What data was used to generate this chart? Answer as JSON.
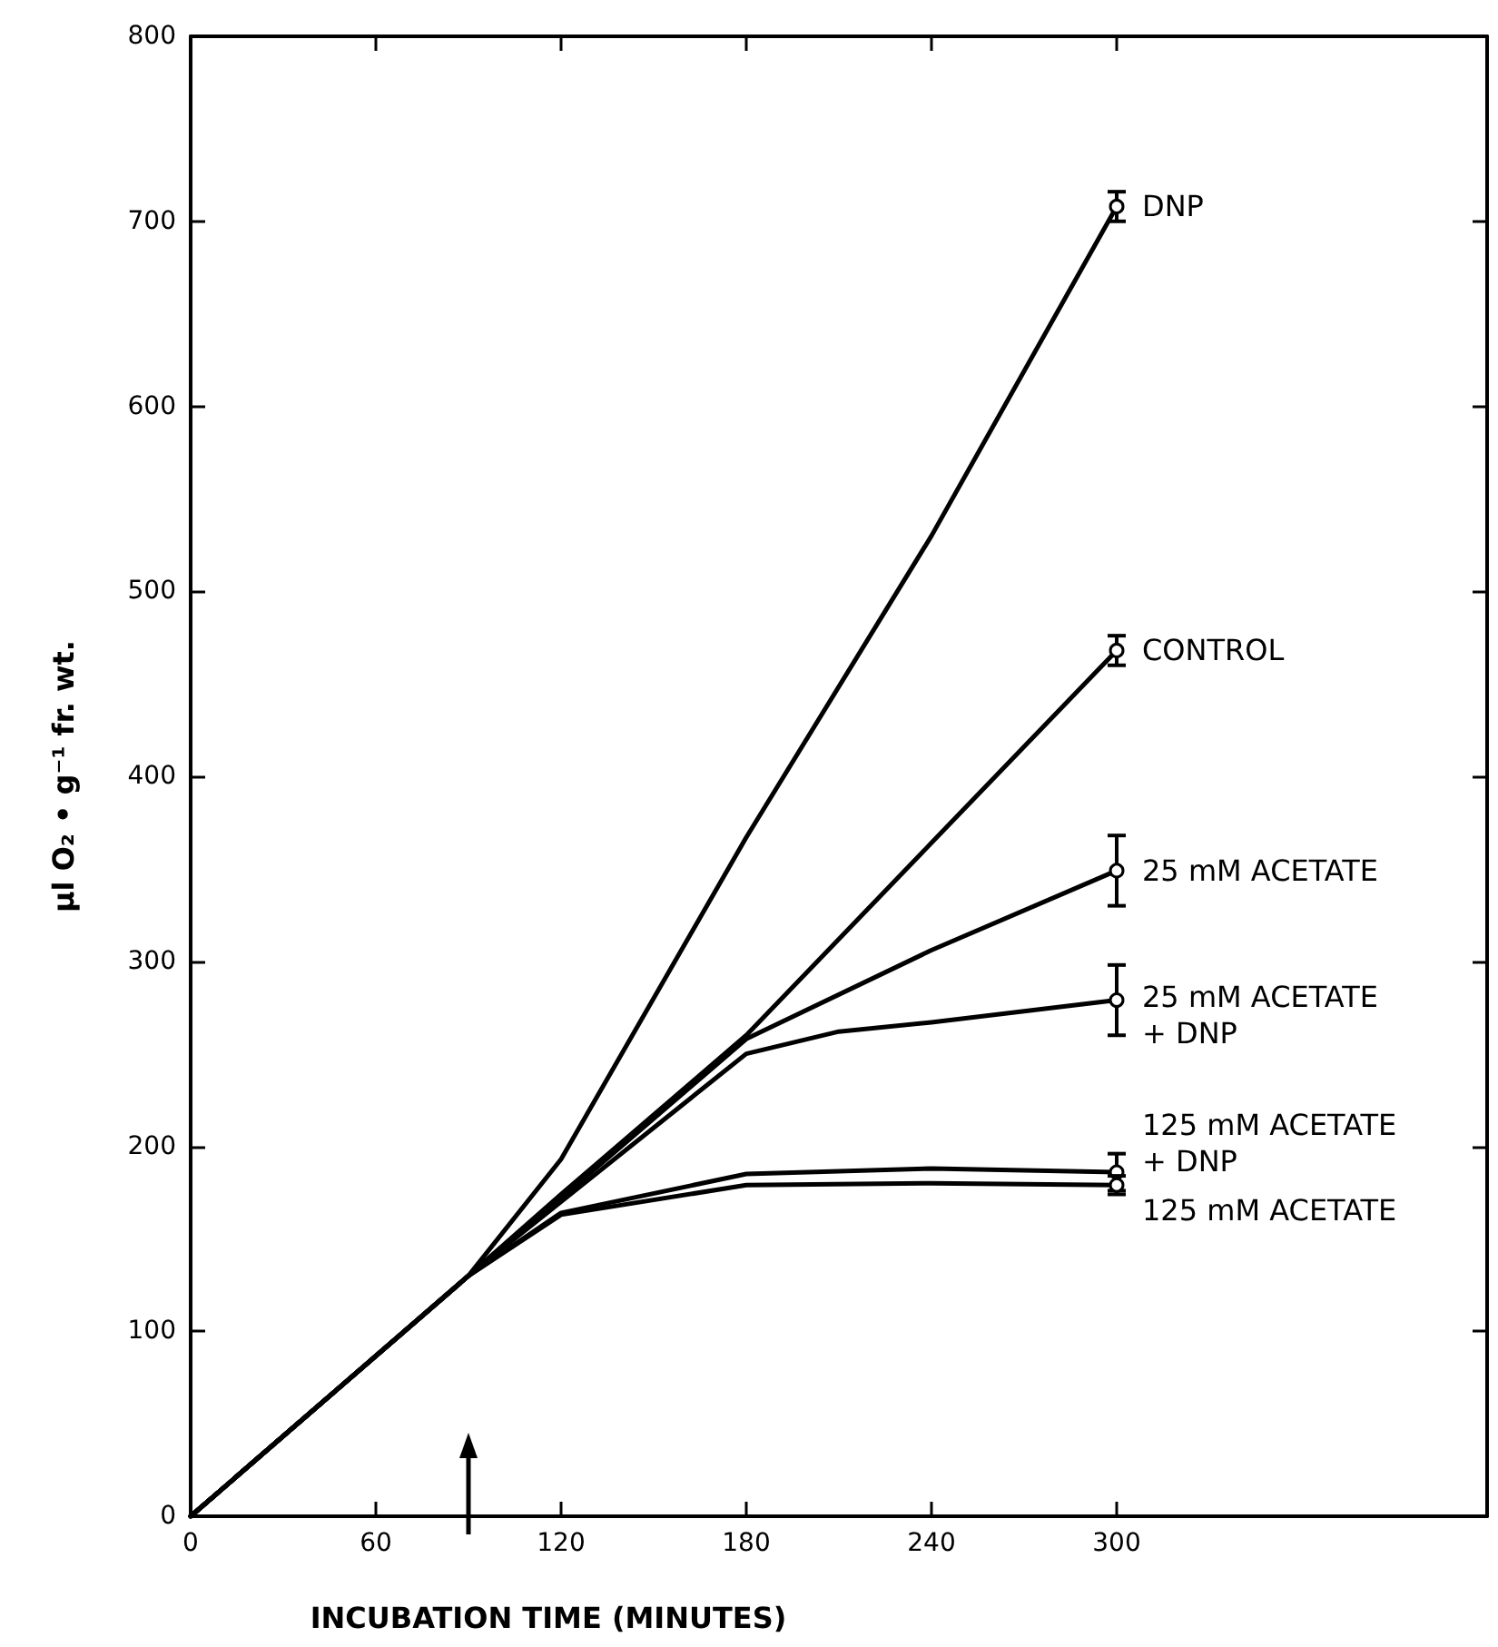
{
  "chart_data": {
    "type": "line",
    "xlabel": "INCUBATION TIME (MINUTES)",
    "ylabel": "μl O₂ • g⁻¹ fr. wt.",
    "xlim": [
      0,
      420
    ],
    "xticks": [
      0,
      60,
      120,
      180,
      240,
      300
    ],
    "ylim": [
      0,
      800
    ],
    "yticks": [
      0,
      100,
      200,
      300,
      400,
      500,
      600,
      700,
      800
    ],
    "grid": false,
    "line_style": "solid",
    "series": [
      {
        "name": "DNP",
        "color": "#000000",
        "x": [
          0,
          90,
          120,
          180,
          240,
          300
        ],
        "values": [
          0,
          130,
          193,
          367,
          530,
          708
        ],
        "errors": [
          null,
          null,
          null,
          null,
          null,
          8
        ]
      },
      {
        "name": "CONTROL",
        "color": "#000000",
        "x": [
          0,
          90,
          120,
          180,
          240,
          300
        ],
        "values": [
          0,
          130,
          174,
          260,
          364,
          468
        ],
        "errors": [
          null,
          null,
          null,
          null,
          null,
          8
        ]
      },
      {
        "name": "25 mM ACETATE",
        "color": "#000000",
        "x": [
          0,
          90,
          120,
          180,
          240,
          300
        ],
        "values": [
          0,
          130,
          172,
          258,
          306,
          349
        ],
        "errors": [
          null,
          null,
          null,
          null,
          null,
          19
        ]
      },
      {
        "name": "25 mM ACETATE + DNP",
        "color": "#000000",
        "x": [
          0,
          90,
          120,
          180,
          210,
          240,
          300
        ],
        "values": [
          0,
          130,
          170,
          250,
          262,
          267,
          279
        ],
        "errors": [
          null,
          null,
          null,
          null,
          null,
          null,
          19
        ]
      },
      {
        "name": "125 mM ACETATE + DNP",
        "color": "#000000",
        "x": [
          0,
          90,
          120,
          180,
          240,
          300
        ],
        "values": [
          0,
          130,
          164,
          185,
          188,
          186
        ],
        "errors": [
          null,
          null,
          null,
          null,
          null,
          10
        ]
      },
      {
        "name": "125 mM ACETATE",
        "color": "#000000",
        "x": [
          0,
          90,
          120,
          180,
          240,
          300
        ],
        "values": [
          0,
          130,
          163,
          179,
          180,
          179
        ],
        "errors": [
          null,
          null,
          null,
          null,
          null,
          5
        ]
      }
    ]
  }
}
